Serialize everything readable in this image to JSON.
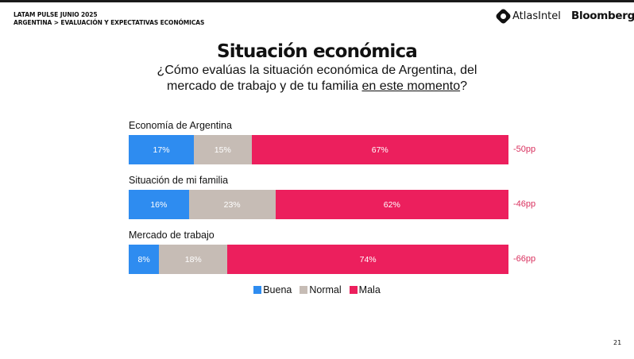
{
  "header": {
    "line1": "LATAM PULSE JUNIO 2025",
    "line2": "ARGENTINA > EVALUACIÓN Y EXPECTATIVAS ECONÓMICAS",
    "logo_atlas": "AtlasIntel",
    "logo_bloomberg": "Bloomberg"
  },
  "title": "Situación económica",
  "subtitle": {
    "line1": "¿Cómo evalúas la situación económica de Argentina, del",
    "line2_a": "mercado de trabajo y de tu familia ",
    "line2_u": "en este momento",
    "line2_b": "?"
  },
  "page_number": "21",
  "colors": {
    "Buena": "#2e8cf0",
    "Normal": "#c6bcb5",
    "Mala": "#ec1f5d",
    "delta": "#d9305e"
  },
  "chart_data": {
    "type": "bar",
    "orientation": "horizontal-stacked-100",
    "categories": [
      "Economía de Argentina",
      "Situación de mi familia",
      "Mercado de trabajo"
    ],
    "series": [
      {
        "name": "Buena",
        "values": [
          17,
          16,
          8
        ]
      },
      {
        "name": "Normal",
        "values": [
          15,
          23,
          18
        ]
      },
      {
        "name": "Mala",
        "values": [
          67,
          62,
          74
        ]
      }
    ],
    "data_labels": [
      [
        "17%",
        "15%",
        "67%"
      ],
      [
        "16%",
        "23%",
        "62%"
      ],
      [
        "8%",
        "18%",
        "74%"
      ]
    ],
    "net_labels": [
      "-50pp",
      "-46pp",
      "-66pp"
    ],
    "legend": [
      "Buena",
      "Normal",
      "Mala"
    ],
    "legend_position": "bottom"
  }
}
